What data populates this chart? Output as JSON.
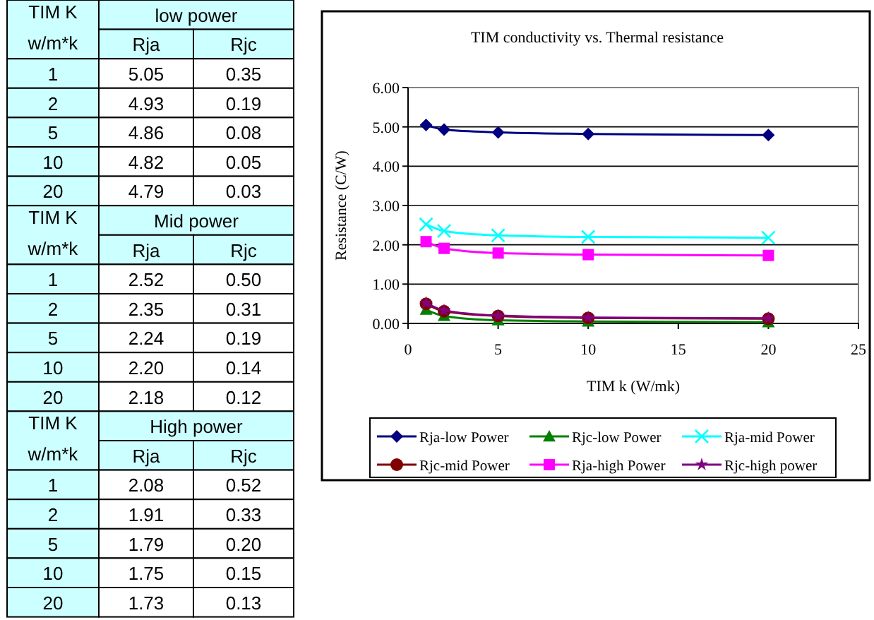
{
  "chart_data": [
    {
      "type": "other",
      "annotations": [
        "TIM K",
        "w/m*k",
        "low power",
        "Rja",
        "Rjc",
        "1",
        "5.05",
        "0.35",
        "2",
        "4.93",
        "0.19",
        "5",
        "4.86",
        "0.08",
        "10",
        "4.82",
        "0.05",
        "20",
        "4.79",
        "0.03",
        "TIM K",
        "w/m*k",
        "Mid power",
        "Rja",
        "Rjc",
        "1",
        "2.52",
        "0.50",
        "2",
        "2.35",
        "0.31",
        "5",
        "2.24",
        "0.19",
        "10",
        "2.20",
        "0.14",
        "20",
        "2.18",
        "0.12",
        "TIM K",
        "w/m*k",
        "High  power",
        "Rja",
        "Rjc",
        "1",
        "2.08",
        "0.52",
        "2",
        "1.91",
        "0.33",
        "5",
        "1.79",
        "0.20",
        "10",
        "1.75",
        "0.15",
        "20",
        "1.73",
        "0.13"
      ]
    },
    {
      "type": "line",
      "title": "TIM conductivity vs. Thermal resistance",
      "xlabel": "TIM k (W/mk)",
      "ylabel": "Resistance (C/W)",
      "x": [
        1,
        2,
        5,
        10,
        20
      ],
      "series": [
        {
          "name": "Rja-low Power",
          "color": "#000080",
          "marker": "diamond",
          "values": [
            5.05,
            4.93,
            4.86,
            4.82,
            4.79
          ]
        },
        {
          "name": "Rjc-low Power",
          "color": "#008000",
          "marker": "triangle",
          "values": [
            0.35,
            0.19,
            0.08,
            0.05,
            0.03
          ]
        },
        {
          "name": "Rja-mid Power",
          "color": "#00ffff",
          "marker": "cross",
          "values": [
            2.52,
            2.35,
            2.24,
            2.2,
            2.18
          ]
        },
        {
          "name": "Rjc-mid Power",
          "color": "#800000",
          "marker": "circle",
          "values": [
            0.5,
            0.31,
            0.19,
            0.14,
            0.12
          ]
        },
        {
          "name": "Rja-high Power",
          "color": "#ff00ff",
          "marker": "square",
          "values": [
            2.08,
            1.91,
            1.79,
            1.75,
            1.73
          ]
        },
        {
          "name": "Rjc-high power",
          "color": "#800080",
          "marker": "star",
          "values": [
            0.52,
            0.33,
            0.2,
            0.15,
            0.13
          ]
        }
      ],
      "xlim": [
        0,
        25
      ],
      "xticks": [
        0,
        5,
        10,
        15,
        20,
        25
      ],
      "ylim": [
        0,
        6
      ],
      "yticks": [
        {
          "value": 0,
          "label": "0.00"
        },
        {
          "value": 1,
          "label": "1.00"
        },
        {
          "value": 2,
          "label": "2.00"
        },
        {
          "value": 3,
          "label": "3.00"
        },
        {
          "value": 4,
          "label": "4.00"
        },
        {
          "value": 5,
          "label": "5.00"
        },
        {
          "value": 6,
          "label": "6.00"
        }
      ],
      "grid": "y",
      "legend": "bottom"
    }
  ]
}
